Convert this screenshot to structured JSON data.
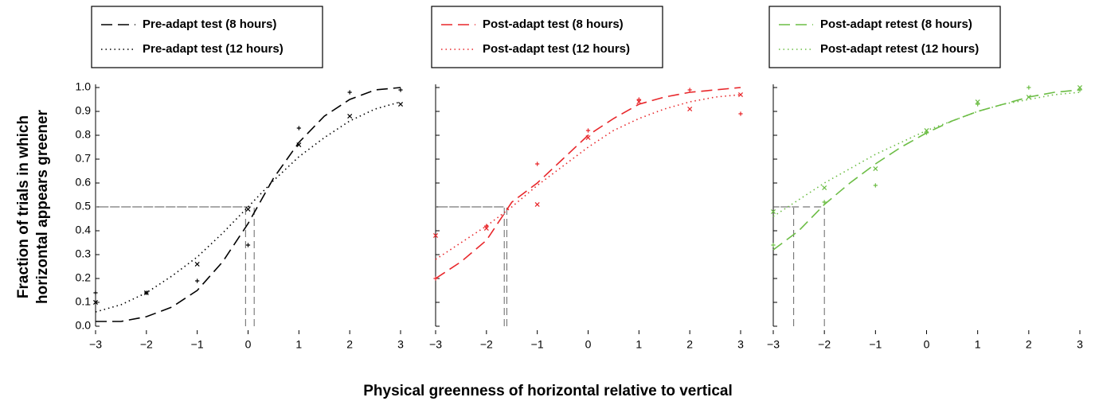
{
  "ylabel": [
    "Fraction of trials in which",
    "horizontal appears greener"
  ],
  "xlabel": "Physical greenness of horizontal relative to vertical",
  "chart_data": [
    {
      "type": "line",
      "x": [
        -3,
        -2.5,
        -2,
        -1.5,
        -1,
        -0.5,
        0,
        0.5,
        1,
        1.5,
        2,
        2.5,
        3
      ],
      "point_x": [
        -3,
        -2,
        -1,
        0,
        1,
        2,
        3
      ],
      "xlim": [
        -3,
        3
      ],
      "ylim": [
        0,
        1
      ],
      "xticks": [
        {
          "value": -3,
          "label": "−3"
        },
        {
          "value": -2,
          "label": "−2"
        },
        {
          "value": -1,
          "label": "−1"
        },
        0,
        1,
        2,
        3
      ],
      "yticks": [
        {
          "value": 0,
          "label": "0.0"
        },
        0.1,
        0.2,
        0.3,
        0.4,
        0.5,
        0.6,
        0.7,
        0.8,
        0.9,
        {
          "value": 1,
          "label": "1.0"
        }
      ],
      "ytick_labels": true,
      "series": [
        {
          "name": "Pre-adapt test (8 hours)",
          "color": "#000000",
          "style": "dashed",
          "marker": "plus",
          "values": [
            0.02,
            0.02,
            0.04,
            0.08,
            0.15,
            0.27,
            0.43,
            0.62,
            0.77,
            0.88,
            0.95,
            0.99,
            1.0
          ],
          "points": [
            0.14,
            0.14,
            0.19,
            0.34,
            0.83,
            0.98,
            0.99
          ],
          "pse": 0.12
        },
        {
          "name": "Pre-adapt test (12 hours)",
          "color": "#000000",
          "style": "dotted",
          "marker": "cross",
          "values": [
            0.06,
            0.09,
            0.14,
            0.21,
            0.29,
            0.39,
            0.5,
            0.61,
            0.71,
            0.79,
            0.86,
            0.91,
            0.94
          ],
          "points": [
            0.1,
            0.14,
            0.26,
            0.49,
            0.76,
            0.88,
            0.93
          ],
          "pse": -0.05
        }
      ]
    },
    {
      "type": "line",
      "x": [
        -3,
        -2.5,
        -2,
        -1.5,
        -1,
        -0.5,
        0,
        0.5,
        1,
        1.5,
        2,
        2.5,
        3
      ],
      "point_x": [
        -3,
        -2,
        -1,
        0,
        1,
        2,
        3
      ],
      "xlim": [
        -3,
        3
      ],
      "ylim": [
        0,
        1
      ],
      "xticks": [
        {
          "value": -3,
          "label": "−3"
        },
        {
          "value": -2,
          "label": "−2"
        },
        {
          "value": -1,
          "label": "−1"
        },
        0,
        1,
        2,
        3
      ],
      "yticks": [
        0,
        0.1,
        0.2,
        0.3,
        0.4,
        0.5,
        0.6,
        0.7,
        0.8,
        0.9,
        1
      ],
      "ytick_labels": false,
      "series": [
        {
          "name": "Post-adapt test (8 hours)",
          "color": "#e8262a",
          "style": "dashed",
          "marker": "plus",
          "values": [
            0.2,
            0.27,
            0.36,
            0.52,
            0.6,
            0.7,
            0.8,
            0.87,
            0.93,
            0.96,
            0.98,
            0.99,
            1.0
          ],
          "points": [
            0.2,
            0.42,
            0.68,
            0.82,
            0.95,
            0.99,
            0.89
          ],
          "pse": -1.6
        },
        {
          "name": "Post-adapt test (12 hours)",
          "color": "#e8262a",
          "style": "dotted",
          "marker": "cross",
          "values": [
            0.28,
            0.35,
            0.42,
            0.5,
            0.59,
            0.67,
            0.75,
            0.82,
            0.87,
            0.91,
            0.94,
            0.96,
            0.97
          ],
          "points": [
            0.38,
            0.41,
            0.51,
            0.79,
            0.94,
            0.91,
            0.97
          ],
          "pse": -1.65
        }
      ]
    },
    {
      "type": "line",
      "x": [
        -3,
        -2.5,
        -2,
        -1.5,
        -1,
        -0.5,
        0,
        0.5,
        1,
        1.5,
        2,
        2.5,
        3
      ],
      "point_x": [
        -3,
        -2,
        -1,
        0,
        1,
        2,
        3
      ],
      "xlim": [
        -3,
        3
      ],
      "ylim": [
        0,
        1
      ],
      "xticks": [
        {
          "value": -3,
          "label": "−3"
        },
        {
          "value": -2,
          "label": "−2"
        },
        {
          "value": -1,
          "label": "−1"
        },
        0,
        1,
        2,
        3
      ],
      "yticks": [
        0,
        0.1,
        0.2,
        0.3,
        0.4,
        0.5,
        0.6,
        0.7,
        0.8,
        0.9,
        1
      ],
      "ytick_labels": false,
      "series": [
        {
          "name": "Post-adapt retest (8 hours)",
          "color": "#6cbd45",
          "style": "dashed",
          "marker": "plus",
          "values": [
            0.32,
            0.4,
            0.51,
            0.6,
            0.68,
            0.75,
            0.81,
            0.86,
            0.9,
            0.93,
            0.96,
            0.98,
            0.99
          ],
          "points": [
            0.34,
            0.52,
            0.59,
            0.81,
            0.93,
            1.0,
            0.99
          ],
          "pse": -2.0
        },
        {
          "name": "Post-adapt retest (12 hours)",
          "color": "#6cbd45",
          "style": "dotted",
          "marker": "cross",
          "values": [
            0.46,
            0.53,
            0.6,
            0.66,
            0.72,
            0.77,
            0.82,
            0.86,
            0.9,
            0.93,
            0.95,
            0.97,
            0.98
          ],
          "points": [
            0.48,
            0.58,
            0.66,
            0.82,
            0.94,
            0.96,
            1.0
          ],
          "pse": -2.6
        }
      ]
    }
  ]
}
